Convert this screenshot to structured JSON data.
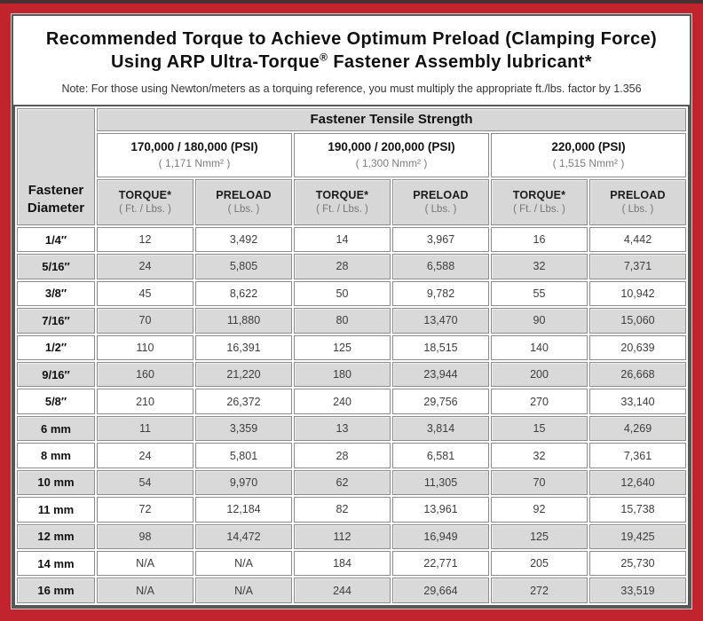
{
  "colors": {
    "frame_red": "#c2242d",
    "top_strip": "#4a3134",
    "header_gray": "#d7d7d7",
    "row_gray": "#d9d9d9",
    "grid_line": "#8c8c8c",
    "outer_border": "#565656"
  },
  "title": {
    "line1": "Recommended Torque to Achieve Optimum Preload (Clamping Force)",
    "line2_prefix": "Using ARP Ultra-Torque",
    "line2_reg": "®",
    "line2_suffix": " Fastener Assembly lubricant*"
  },
  "note": "Note: For those using Newton/meters as a torquing reference, you must multiply the appropriate ft./lbs. factor by 1.356",
  "table": {
    "corner_line1": "Fastener",
    "corner_line2": "Diameter",
    "tensile_header": "Fastener Tensile Strength",
    "groups": [
      {
        "psi": "170,000 / 180,000 (PSI)",
        "nmm": "( 1,171 Nmm² )"
      },
      {
        "psi": "190,000 / 200,000 (PSI)",
        "nmm": "( 1,300 Nmm² )"
      },
      {
        "psi": "220,000 (PSI)",
        "nmm": "( 1,515 Nmm² )"
      }
    ],
    "col_headers": [
      {
        "label": "TORQUE*",
        "sub": "( Ft. / Lbs. )"
      },
      {
        "label": "PRELOAD",
        "sub": "( Lbs. )"
      },
      {
        "label": "TORQUE*",
        "sub": "( Ft. / Lbs. )"
      },
      {
        "label": "PRELOAD",
        "sub": "( Lbs. )"
      },
      {
        "label": "TORQUE*",
        "sub": "( Ft. / Lbs. )"
      },
      {
        "label": "PRELOAD",
        "sub": "( Lbs. )"
      }
    ],
    "rows": [
      {
        "dia": "1/4″",
        "cells": [
          "12",
          "3,492",
          "14",
          "3,967",
          "16",
          "4,442"
        ]
      },
      {
        "dia": "5/16″",
        "cells": [
          "24",
          "5,805",
          "28",
          "6,588",
          "32",
          "7,371"
        ]
      },
      {
        "dia": "3/8″",
        "cells": [
          "45",
          "8,622",
          "50",
          "9,782",
          "55",
          "10,942"
        ]
      },
      {
        "dia": "7/16″",
        "cells": [
          "70",
          "11,880",
          "80",
          "13,470",
          "90",
          "15,060"
        ]
      },
      {
        "dia": "1/2″",
        "cells": [
          "110",
          "16,391",
          "125",
          "18,515",
          "140",
          "20,639"
        ]
      },
      {
        "dia": "9/16″",
        "cells": [
          "160",
          "21,220",
          "180",
          "23,944",
          "200",
          "26,668"
        ]
      },
      {
        "dia": "5/8″",
        "cells": [
          "210",
          "26,372",
          "240",
          "29,756",
          "270",
          "33,140"
        ]
      },
      {
        "dia": "6 mm",
        "cells": [
          "11",
          "3,359",
          "13",
          "3,814",
          "15",
          "4,269"
        ]
      },
      {
        "dia": "8 mm",
        "cells": [
          "24",
          "5,801",
          "28",
          "6,581",
          "32",
          "7,361"
        ]
      },
      {
        "dia": "10 mm",
        "cells": [
          "54",
          "9,970",
          "62",
          "11,305",
          "70",
          "12,640"
        ]
      },
      {
        "dia": "11 mm",
        "cells": [
          "72",
          "12,184",
          "82",
          "13,961",
          "92",
          "15,738"
        ]
      },
      {
        "dia": "12 mm",
        "cells": [
          "98",
          "14,472",
          "112",
          "16,949",
          "125",
          "19,425"
        ]
      },
      {
        "dia": "14 mm",
        "cells": [
          "N/A",
          "N/A",
          "184",
          "22,771",
          "205",
          "25,730"
        ]
      },
      {
        "dia": "16 mm",
        "cells": [
          "N/A",
          "N/A",
          "244",
          "29,664",
          "272",
          "33,519"
        ]
      }
    ]
  }
}
